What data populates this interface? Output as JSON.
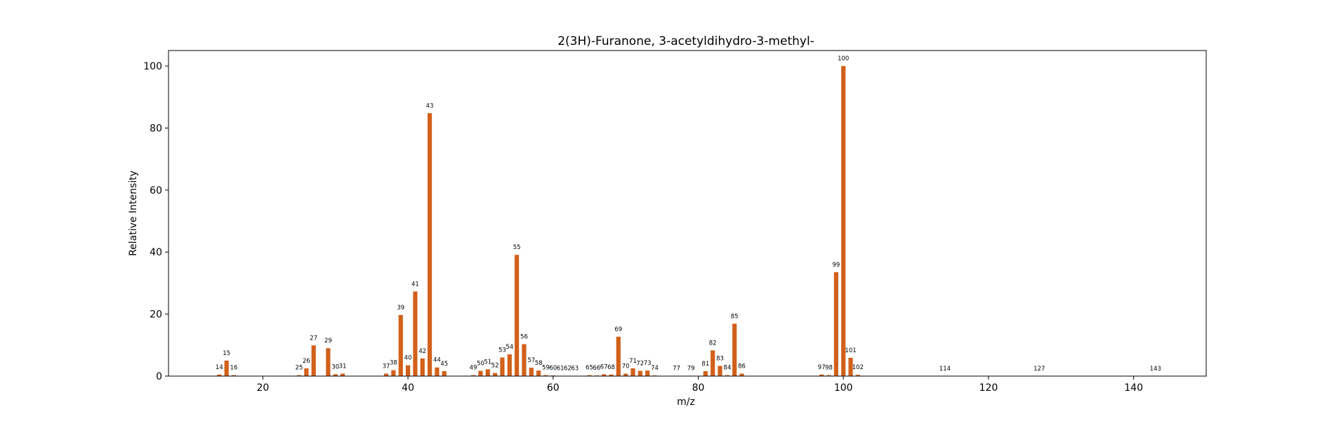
{
  "chart_data": {
    "type": "bar",
    "title": "2(3H)-Furanone, 3-acetyldihydro-3-methyl-",
    "xlabel": "m/z",
    "ylabel": "Relative Intensity",
    "xlim": [
      7,
      150
    ],
    "ylim": [
      0,
      105
    ],
    "xticks": [
      20,
      40,
      60,
      80,
      100,
      120,
      140
    ],
    "yticks": [
      0,
      20,
      40,
      60,
      80,
      100
    ],
    "grid": false,
    "bar_color": "#d2601a",
    "x": [
      14,
      15,
      16,
      25,
      26,
      27,
      29,
      30,
      31,
      37,
      38,
      39,
      40,
      41,
      42,
      43,
      44,
      45,
      49,
      50,
      51,
      52,
      53,
      54,
      55,
      56,
      57,
      58,
      59,
      60,
      61,
      62,
      63,
      65,
      66,
      67,
      68,
      69,
      70,
      71,
      72,
      73,
      74,
      77,
      79,
      81,
      82,
      83,
      84,
      85,
      86,
      97,
      98,
      99,
      100,
      101,
      102,
      114,
      127,
      143
    ],
    "values": [
      0.5,
      5.0,
      0.3,
      0.3,
      2.5,
      9.9,
      9.0,
      0.6,
      0.8,
      0.8,
      1.9,
      19.7,
      3.5,
      27.3,
      5.7,
      84.8,
      2.8,
      1.6,
      0.3,
      1.7,
      2.2,
      1.0,
      6.0,
      7.0,
      39.1,
      10.3,
      2.7,
      1.8,
      0.3,
      0.2,
      0.1,
      0.1,
      0.1,
      0.3,
      0.2,
      0.6,
      0.5,
      12.7,
      0.8,
      2.5,
      1.7,
      1.8,
      0.2,
      0.1,
      0.1,
      1.6,
      8.3,
      3.3,
      0.3,
      16.9,
      0.8,
      0.5,
      0.3,
      33.5,
      100,
      5.9,
      0.4,
      0.0,
      0.0,
      0.0
    ],
    "labels": [
      "14",
      "15",
      "16",
      "25",
      "26",
      "27",
      "29",
      "30",
      "31",
      "37",
      "38",
      "39",
      "40",
      "41",
      "42",
      "43",
      "44",
      "45",
      "49",
      "50",
      "51",
      "52",
      "53",
      "54",
      "55",
      "56",
      "57",
      "58",
      "59",
      "60",
      "61",
      "62",
      "63",
      "65",
      "66",
      "67",
      "68",
      "69",
      "70",
      "71",
      "72",
      "73",
      "74",
      "77",
      "79",
      "81",
      "82",
      "83",
      "84",
      "85",
      "86",
      "97",
      "98",
      "99",
      "100",
      "101",
      "102",
      "114",
      "127",
      "143"
    ]
  }
}
